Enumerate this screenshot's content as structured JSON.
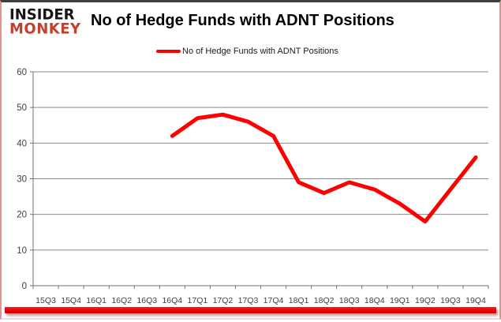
{
  "logo": {
    "line1": "INSIDER",
    "line2": "MONKEY",
    "line1_color": "#161616",
    "line2_color": "#c2402c"
  },
  "header": {
    "title": "No of Hedge Funds with ADNT Positions"
  },
  "legend": {
    "label": "No of Hedge Funds with ADNT Positions",
    "line_color": "#ff0000"
  },
  "chart_data": {
    "type": "line",
    "title": "No of Hedge Funds with ADNT Positions",
    "categories": [
      "15Q3",
      "15Q4",
      "16Q1",
      "16Q2",
      "16Q3",
      "16Q4",
      "17Q1",
      "17Q2",
      "17Q3",
      "17Q4",
      "18Q1",
      "18Q2",
      "18Q3",
      "18Q4",
      "19Q1",
      "19Q2",
      "19Q3",
      "19Q4"
    ],
    "series": [
      {
        "name": "No of Hedge Funds with ADNT Positions",
        "color": "#ff0000",
        "values": [
          null,
          null,
          null,
          null,
          null,
          42,
          47,
          48,
          46,
          42,
          29,
          26,
          29,
          27,
          23,
          18,
          27,
          36
        ]
      }
    ],
    "ylim": [
      0,
      60
    ],
    "y_ticks": [
      0,
      10,
      20,
      30,
      40,
      50,
      60
    ],
    "xlabel": "",
    "ylabel": "",
    "grid": "horizontal",
    "legend_position": "top",
    "grid_color": "#8a8a8a",
    "axis_text_color": "#3f3f3f"
  },
  "footer": {
    "bar_color": "#f00000"
  }
}
